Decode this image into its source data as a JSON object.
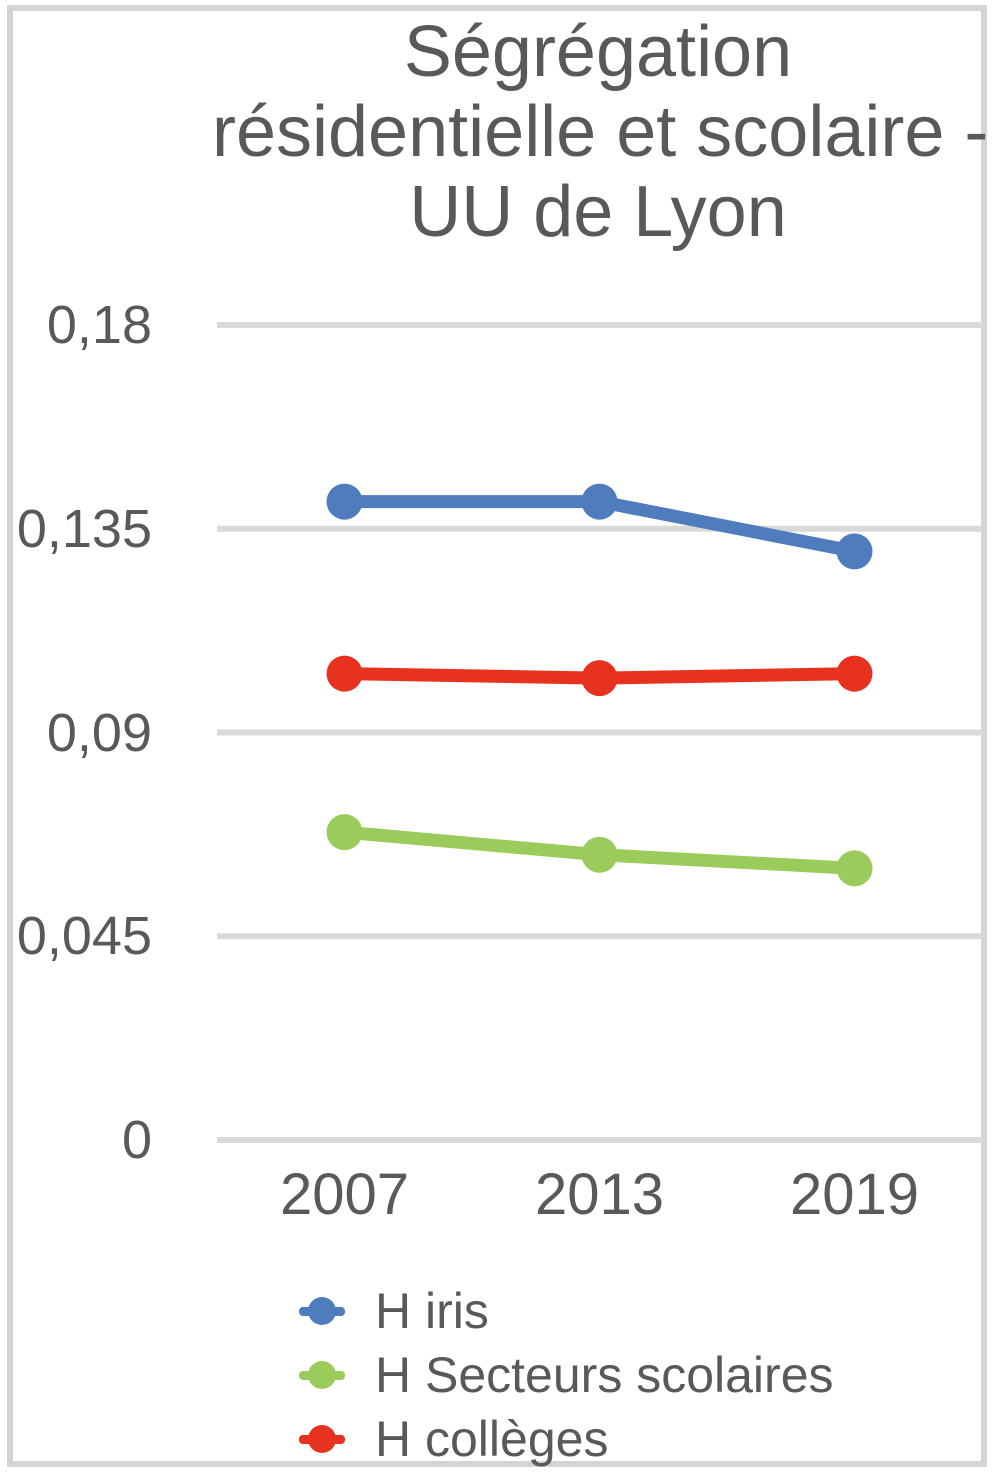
{
  "frame": {
    "border_color": "#D4D4D4",
    "background_color": "#FFFFFF"
  },
  "text_color": "#595959",
  "grid_color": "#D9D9D9",
  "chart_data": {
    "type": "line",
    "title": "Ségrégation résidentielle et scolaire - UU de Lyon",
    "title_lines": [
      "Ségrégation",
      "résidentielle et scolaire -",
      "UU de Lyon"
    ],
    "categories": [
      "2007",
      "2013",
      "2019"
    ],
    "series": [
      {
        "name": "H iris",
        "color": "#4F7CBC",
        "values": [
          0.141,
          0.141,
          0.13
        ]
      },
      {
        "name": "H Secteurs scolaires",
        "color": "#9BCB5B",
        "values": [
          0.068,
          0.063,
          0.06
        ]
      },
      {
        "name": "H collèges",
        "color": "#E6321E",
        "values": [
          0.103,
          0.102,
          0.103
        ]
      }
    ],
    "xlabel": "",
    "ylabel": "",
    "ylim": [
      0,
      0.18
    ],
    "yticks": [
      {
        "value": 0,
        "label": "0"
      },
      {
        "value": 0.045,
        "label": "0,045"
      },
      {
        "value": 0.09,
        "label": "0,09"
      },
      {
        "value": 0.135,
        "label": "0,135"
      },
      {
        "value": 0.18,
        "label": "0,18"
      }
    ],
    "decimal_separator": ",",
    "grid": true,
    "legend_position": "bottom-left",
    "marker": "circle"
  }
}
